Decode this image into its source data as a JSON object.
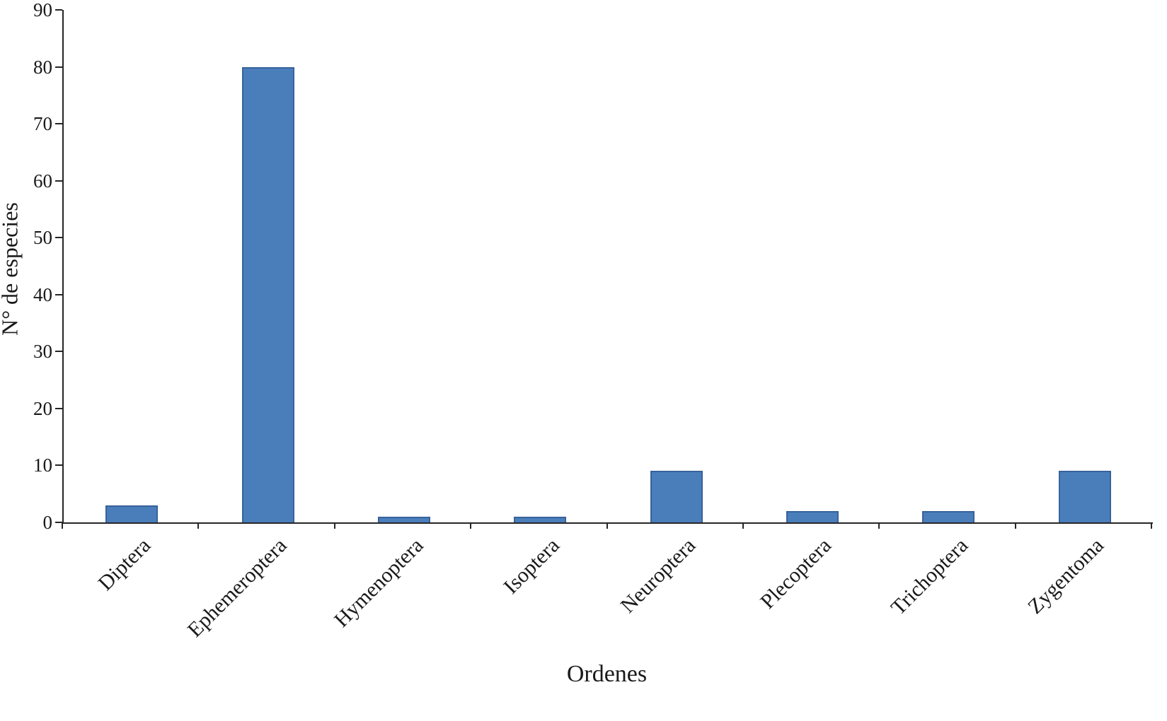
{
  "chart_data": {
    "type": "bar",
    "title": "",
    "xlabel": "Ordenes",
    "ylabel": "N° de especies",
    "categories": [
      "Diptera",
      "Ephemeroptera",
      "Hymenoptera",
      "Isoptera",
      "Neuroptera",
      "Plecoptera",
      "Trichoptera",
      "Zygentoma"
    ],
    "values": [
      3,
      80,
      1,
      1,
      9,
      2,
      2,
      9
    ],
    "ylim": [
      0,
      90
    ],
    "ytick_interval": 10,
    "ytick_labels": [
      "0",
      "10",
      "20",
      "30",
      "40",
      "50",
      "60",
      "70",
      "80",
      "90"
    ],
    "grid": false,
    "legend": false,
    "bar_color": "#4a7ebb",
    "bar_border_color": "#38629b",
    "axis_color": "#262626",
    "text_color": "#1a1a1a"
  }
}
